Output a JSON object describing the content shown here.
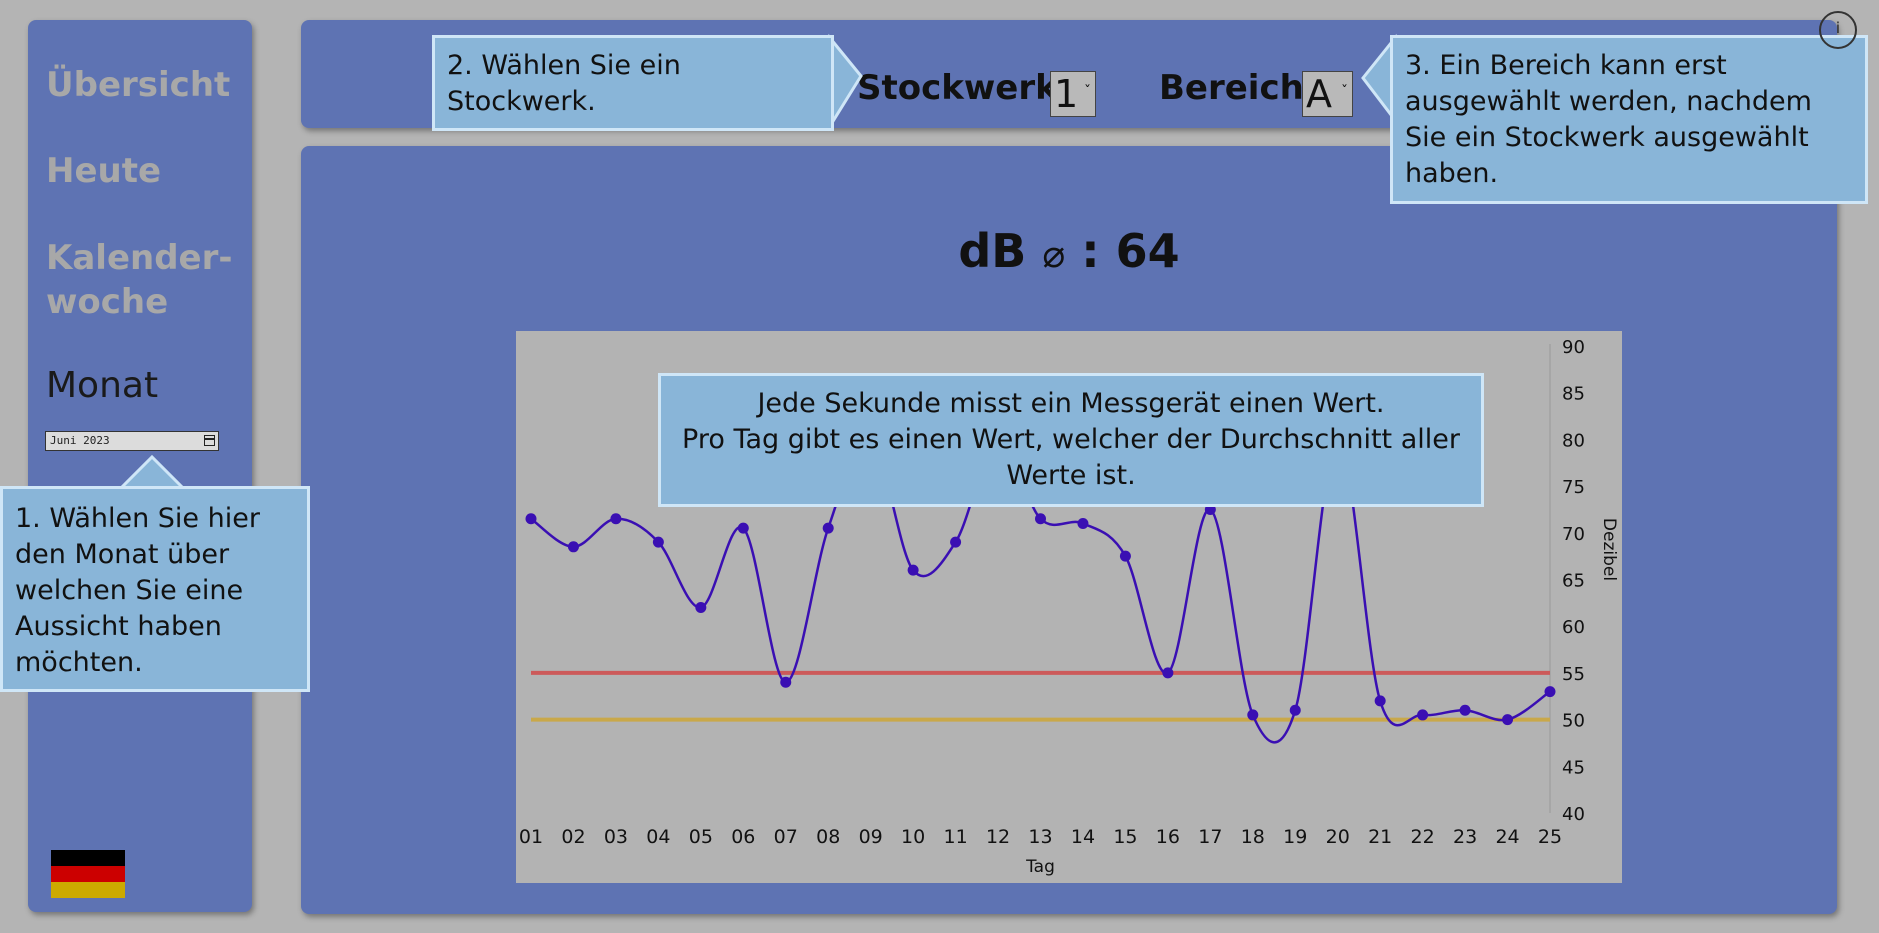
{
  "sidebar": {
    "items": [
      {
        "label": "Übersicht"
      },
      {
        "label": "Heute"
      },
      {
        "label": "Kalender-\nwoche"
      },
      {
        "label": "Monat"
      }
    ],
    "month_value": "Juni 2023",
    "flag_colors": [
      "#000000",
      "#cc0000",
      "#ccaa00"
    ]
  },
  "header": {
    "floor_label": "Stockwerk:",
    "floor_value": "1",
    "area_label": "Bereich:",
    "area_value": "A",
    "info_icon": "i"
  },
  "main": {
    "avg_label": "dB",
    "avg_symbol": "⌀",
    "avg_value": ": 64"
  },
  "tooltips": {
    "month": "1. Wählen Sie hier den Monat über welchen Sie eine Aussicht haben möchten.",
    "floor": "2. Wählen Sie ein Stockwerk.",
    "area": "3. Ein Bereich kann erst ausgewählt werden, nachdem Sie ein Stockwerk ausgewählt haben.",
    "chart": "Jede Sekunde misst ein Messgerät einen Wert.\nPro Tag gibt es einen Wert, welcher der Durchschnitt aller Werte ist."
  },
  "chart_data": {
    "type": "line",
    "xlabel": "Tag",
    "ylabel": "Dezibel",
    "ylim": [
      40,
      90
    ],
    "yticks": [
      40,
      45,
      50,
      55,
      60,
      65,
      70,
      75,
      80,
      85,
      90
    ],
    "categories": [
      "01",
      "02",
      "03",
      "04",
      "05",
      "06",
      "07",
      "08",
      "09",
      "10",
      "11",
      "12",
      "13",
      "14",
      "15",
      "16",
      "17",
      "18",
      "19",
      "20",
      "21",
      "22",
      "23",
      "24",
      "25"
    ],
    "series": [
      {
        "values": [
          71.5,
          68.5,
          71.5,
          69,
          62,
          70.5,
          54,
          70.5,
          80,
          66,
          69,
          80,
          71.5,
          71,
          67.5,
          55,
          72.5,
          50.5,
          51,
          80,
          52,
          50.5,
          51,
          50,
          53
        ],
        "color": "#3a0fb3"
      }
    ],
    "thresholds": [
      {
        "value": 55,
        "color": "#cc5a5a"
      },
      {
        "value": 50,
        "color": "#c9a84a"
      }
    ],
    "grid": false,
    "y_axis_position": "right"
  }
}
